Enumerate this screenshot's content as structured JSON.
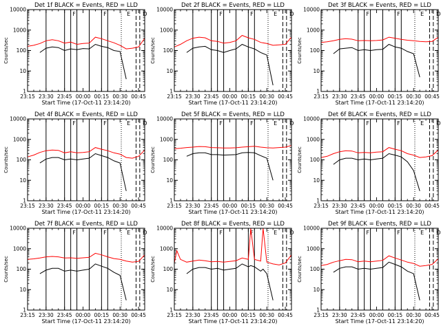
{
  "page": {
    "background": "#ffffff",
    "axis_color": "#000000"
  },
  "panel_common": {
    "ylabel": "Counts/sec",
    "xlabel": "Start Time (17-Oct-11 23:14:20)",
    "x_ticks": [
      "23:15",
      "23:30",
      "23:45",
      "00:00",
      "00:15",
      "00:30",
      "00:45"
    ],
    "y_ticks": [
      "1",
      "10",
      "100",
      "1000",
      "10000"
    ],
    "ylim": [
      1,
      10000
    ],
    "xlim_minutes": [
      0,
      95
    ],
    "solid_markers": [
      15,
      30,
      35,
      40,
      50,
      60,
      65
    ],
    "dotted_markers": [
      76
    ],
    "dashed_markers": [
      88,
      91
    ],
    "marker_letters": [
      {
        "t": 36,
        "text": "F"
      },
      {
        "t": 61,
        "text": "F"
      },
      {
        "t": 80,
        "text": "E"
      },
      {
        "t": 93,
        "text": "D"
      }
    ]
  },
  "series_colors": {
    "events": "#000000",
    "lld": "#ff0000"
  },
  "chart_data": [
    {
      "type": "line",
      "title": "Det  1f BLACK = Events, RED = LLD",
      "xlabel": "Start Time (17-Oct-11 23:14:20)",
      "ylabel": "Counts/sec",
      "x": [
        0,
        5,
        10,
        15,
        20,
        25,
        30,
        35,
        40,
        45,
        50,
        55,
        60,
        65,
        70,
        75,
        80,
        85,
        90,
        95
      ],
      "series": [
        {
          "name": "Events",
          "values": [
            null,
            null,
            80,
            130,
            150,
            140,
            100,
            120,
            110,
            125,
            120,
            200,
            160,
            140,
            100,
            90,
            4,
            null,
            null,
            null
          ]
        },
        {
          "name": "LLD",
          "values": [
            160,
            180,
            220,
            300,
            340,
            300,
            230,
            260,
            200,
            220,
            230,
            450,
            380,
            300,
            240,
            180,
            120,
            130,
            150,
            400
          ]
        }
      ]
    },
    {
      "type": "line",
      "title": "Det  2f BLACK = Events, RED = LLD",
      "xlabel": "Start Time (17-Oct-11 23:14:20)",
      "ylabel": "Counts/sec",
      "x": [
        0,
        5,
        10,
        15,
        20,
        25,
        30,
        35,
        40,
        45,
        50,
        55,
        60,
        65,
        70,
        75,
        80,
        85,
        90,
        95
      ],
      "series": [
        {
          "name": "Events",
          "values": [
            null,
            null,
            80,
            130,
            150,
            160,
            110,
            100,
            80,
            100,
            120,
            200,
            150,
            120,
            80,
            60,
            2,
            null,
            null,
            null
          ]
        },
        {
          "name": "LLD",
          "values": [
            150,
            200,
            300,
            400,
            450,
            420,
            300,
            280,
            230,
            250,
            300,
            550,
            420,
            350,
            250,
            220,
            180,
            190,
            200,
            450
          ]
        }
      ]
    },
    {
      "type": "line",
      "title": "Det  3f BLACK = Events, RED = LLD",
      "xlabel": "Start Time (17-Oct-11 23:14:20)",
      "ylabel": "Counts/sec",
      "x": [
        0,
        5,
        10,
        15,
        20,
        25,
        30,
        35,
        40,
        45,
        50,
        55,
        60,
        65,
        70,
        75,
        80,
        85,
        90,
        95
      ],
      "series": [
        {
          "name": "Events",
          "values": [
            null,
            null,
            70,
            120,
            130,
            140,
            100,
            110,
            100,
            110,
            115,
            200,
            150,
            130,
            90,
            70,
            5,
            null,
            null,
            null
          ]
        },
        {
          "name": "LLD",
          "values": [
            250,
            270,
            300,
            350,
            380,
            360,
            300,
            310,
            300,
            310,
            330,
            450,
            400,
            350,
            320,
            300,
            280,
            270,
            280,
            450
          ]
        }
      ]
    },
    {
      "type": "line",
      "title": "Det  4f BLACK = Events, RED = LLD",
      "xlabel": "Start Time (17-Oct-11 23:14:20)",
      "ylabel": "Counts/sec",
      "x": [
        0,
        5,
        10,
        15,
        20,
        25,
        30,
        35,
        40,
        45,
        50,
        55,
        60,
        65,
        70,
        75,
        80,
        85,
        90,
        95
      ],
      "series": [
        {
          "name": "Events",
          "values": [
            null,
            null,
            70,
            110,
            130,
            130,
            100,
            110,
            100,
            110,
            120,
            200,
            160,
            130,
            90,
            70,
            3,
            null,
            null,
            null
          ]
        },
        {
          "name": "LLD",
          "values": [
            140,
            170,
            230,
            280,
            300,
            290,
            220,
            250,
            220,
            230,
            250,
            400,
            330,
            280,
            220,
            190,
            130,
            120,
            150,
            300
          ]
        }
      ]
    },
    {
      "type": "line",
      "title": "Det  5f BLACK = Events, RED = LLD",
      "xlabel": "Start Time (17-Oct-11 23:14:20)",
      "ylabel": "Counts/sec",
      "x": [
        0,
        5,
        10,
        15,
        20,
        25,
        30,
        35,
        40,
        45,
        50,
        55,
        60,
        65,
        70,
        75,
        80,
        85,
        90,
        95
      ],
      "series": [
        {
          "name": "Events",
          "values": [
            null,
            null,
            150,
            200,
            220,
            220,
            180,
            180,
            170,
            175,
            180,
            220,
            230,
            220,
            160,
            120,
            10,
            null,
            null,
            null
          ]
        },
        {
          "name": "LLD",
          "values": [
            350,
            370,
            400,
            420,
            450,
            440,
            400,
            390,
            380,
            380,
            390,
            420,
            440,
            460,
            420,
            390,
            380,
            400,
            420,
            500
          ]
        }
      ]
    },
    {
      "type": "line",
      "title": "Det  6f BLACK = Events, RED = LLD",
      "xlabel": "Start Time (17-Oct-11 23:14:20)",
      "ylabel": "Counts/sec",
      "x": [
        0,
        5,
        10,
        15,
        20,
        25,
        30,
        35,
        40,
        45,
        50,
        55,
        60,
        65,
        70,
        75,
        80,
        85,
        90,
        95
      ],
      "series": [
        {
          "name": "Events",
          "values": [
            null,
            null,
            60,
            100,
            120,
            120,
            100,
            110,
            100,
            110,
            120,
            200,
            170,
            140,
            80,
            30,
            3,
            null,
            null,
            null
          ]
        },
        {
          "name": "LLD",
          "values": [
            130,
            150,
            200,
            250,
            280,
            270,
            220,
            230,
            220,
            240,
            250,
            400,
            330,
            280,
            200,
            170,
            130,
            140,
            160,
            300
          ]
        }
      ]
    },
    {
      "type": "line",
      "title": "Det  7f BLACK = Events, RED = LLD",
      "xlabel": "Start Time (17-Oct-11 23:14:20)",
      "ylabel": "Counts/sec",
      "x": [
        0,
        5,
        10,
        15,
        20,
        25,
        30,
        35,
        40,
        45,
        50,
        55,
        60,
        65,
        70,
        75,
        80,
        85,
        90,
        95
      ],
      "series": [
        {
          "name": "Events",
          "values": [
            null,
            null,
            60,
            90,
            110,
            110,
            80,
            90,
            80,
            90,
            100,
            180,
            140,
            110,
            70,
            50,
            3,
            null,
            null,
            null
          ]
        },
        {
          "name": "LLD",
          "values": [
            300,
            320,
            350,
            400,
            420,
            400,
            350,
            360,
            340,
            360,
            380,
            600,
            500,
            400,
            330,
            300,
            250,
            220,
            240,
            500
          ]
        }
      ]
    },
    {
      "type": "line",
      "title": "Det  8f BLACK = Events, RED = LLD",
      "xlabel": "Start Time (17-Oct-11 23:14:20)",
      "ylabel": "Counts/sec",
      "x": [
        0,
        2,
        5,
        10,
        15,
        20,
        25,
        30,
        35,
        40,
        45,
        50,
        55,
        60,
        62,
        65,
        70,
        72,
        75,
        80,
        85,
        90,
        95
      ],
      "series": [
        {
          "name": "Events",
          "values": [
            null,
            null,
            null,
            60,
            100,
            120,
            120,
            100,
            110,
            90,
            100,
            110,
            180,
            130,
            150,
            130,
            80,
            100,
            60,
            3,
            null,
            null,
            null
          ]
        },
        {
          "name": "LLD",
          "values": [
            200,
            800,
            300,
            220,
            250,
            280,
            260,
            230,
            240,
            220,
            240,
            260,
            350,
            300,
            10000,
            300,
            250,
            10000,
            220,
            180,
            160,
            200,
            500
          ]
        }
      ]
    },
    {
      "type": "line",
      "title": "Det  9f BLACK = Events, RED = LLD",
      "xlabel": "Start Time (17-Oct-11 23:14:20)",
      "ylabel": "Counts/sec",
      "x": [
        0,
        5,
        10,
        15,
        20,
        25,
        30,
        35,
        40,
        45,
        50,
        55,
        60,
        65,
        70,
        75,
        80,
        85,
        90,
        95
      ],
      "series": [
        {
          "name": "Events",
          "values": [
            null,
            null,
            70,
            110,
            130,
            130,
            100,
            110,
            100,
            110,
            120,
            220,
            170,
            130,
            80,
            60,
            3,
            null,
            null,
            null
          ]
        },
        {
          "name": "LLD",
          "values": [
            150,
            170,
            220,
            260,
            300,
            290,
            230,
            250,
            230,
            250,
            270,
            450,
            350,
            280,
            220,
            190,
            140,
            150,
            170,
            320
          ]
        }
      ]
    }
  ]
}
